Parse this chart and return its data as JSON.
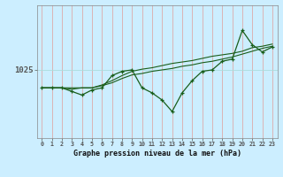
{
  "hours": [
    0,
    1,
    2,
    3,
    4,
    5,
    6,
    7,
    8,
    9,
    10,
    11,
    12,
    13,
    14,
    15,
    16,
    17,
    18,
    19,
    20,
    21,
    22,
    23
  ],
  "pressure_main": [
    1022.5,
    1022.5,
    1022.5,
    1022.0,
    1021.5,
    1022.2,
    1022.5,
    1024.2,
    1024.8,
    1025.0,
    1022.5,
    1021.8,
    1020.8,
    1019.2,
    1021.8,
    1023.5,
    1024.8,
    1025.0,
    1026.2,
    1026.5,
    1030.5,
    1028.5,
    1027.5,
    1028.2
  ],
  "pressure_trend1": [
    1022.5,
    1022.5,
    1022.5,
    1022.5,
    1022.5,
    1022.5,
    1022.8,
    1023.2,
    1023.8,
    1024.3,
    1024.5,
    1024.8,
    1025.0,
    1025.2,
    1025.5,
    1025.7,
    1026.0,
    1026.2,
    1026.5,
    1026.8,
    1027.2,
    1027.6,
    1028.0,
    1028.3
  ],
  "pressure_trend2": [
    1022.5,
    1022.5,
    1022.5,
    1022.3,
    1022.5,
    1022.5,
    1022.9,
    1023.5,
    1024.2,
    1024.8,
    1025.1,
    1025.3,
    1025.6,
    1025.9,
    1026.1,
    1026.3,
    1026.6,
    1026.9,
    1027.1,
    1027.3,
    1027.6,
    1028.1,
    1028.3,
    1028.6
  ],
  "bg_color": "#cceeff",
  "line_color": "#1a5e1a",
  "hgrid_color": "#aadddd",
  "vgrid_color": "#ddaaaa",
  "xlabel": "Graphe pression niveau de la mer (hPa)",
  "ytick_value": 1025,
  "ylim_min": 1015.5,
  "ylim_max": 1034.0,
  "xlim_min": -0.5,
  "xlim_max": 23.5,
  "figsize": [
    3.2,
    2.0
  ],
  "dpi": 100
}
